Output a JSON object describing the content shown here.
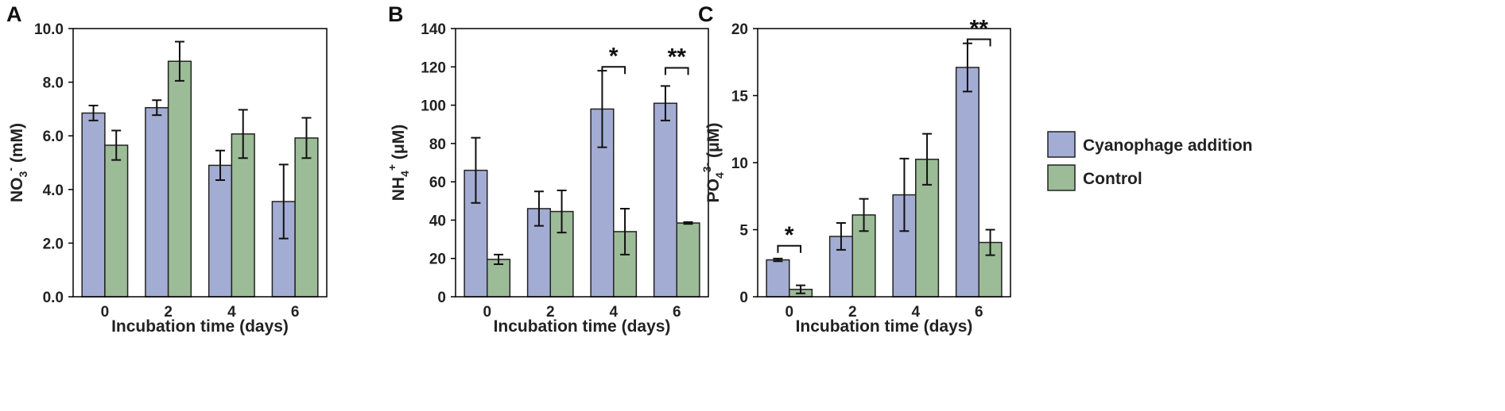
{
  "chart_data": [
    {
      "type": "bar",
      "panel": "A",
      "categories": [
        "0",
        "2",
        "4",
        "6"
      ],
      "series": [
        {
          "name": "Cyanophage addition",
          "values": [
            6.85,
            7.05,
            4.9,
            3.55
          ],
          "errors": [
            0.28,
            0.28,
            0.55,
            1.38
          ]
        },
        {
          "name": "Control",
          "values": [
            5.65,
            8.78,
            6.07,
            5.92
          ],
          "errors": [
            0.55,
            0.73,
            0.9,
            0.75
          ]
        }
      ],
      "ylim": [
        0,
        10
      ],
      "yticks": [
        0,
        2,
        4,
        6,
        8,
        10
      ],
      "ytick_labels": [
        "0.0",
        "2.0",
        "4.0",
        "6.0",
        "8.0",
        "10.0"
      ],
      "ylabel_main": "NO",
      "ylabel_sub": "3",
      "ylabel_sup": "-",
      "ylabel_tail": " (mM)",
      "xlabel": "Incubation time (days)",
      "significance": []
    },
    {
      "type": "bar",
      "panel": "B",
      "categories": [
        "0",
        "2",
        "4",
        "6"
      ],
      "series": [
        {
          "name": "Cyanophage addition",
          "values": [
            66,
            46,
            98,
            101
          ],
          "errors": [
            17,
            9,
            20,
            9
          ]
        },
        {
          "name": "Control",
          "values": [
            19.5,
            44.5,
            34,
            38.5
          ],
          "errors": [
            2.5,
            11,
            12,
            0.5
          ]
        }
      ],
      "ylim": [
        0,
        140
      ],
      "yticks": [
        0,
        20,
        40,
        60,
        80,
        100,
        120,
        140
      ],
      "ytick_labels": [
        "0",
        "20",
        "40",
        "60",
        "80",
        "100",
        "120",
        "140"
      ],
      "ylabel_main": "NH",
      "ylabel_sub": "4",
      "ylabel_sup": "+",
      "ylabel_tail": " (μM)",
      "xlabel": "Incubation time (days)",
      "significance": [
        {
          "category": 2,
          "label": "*",
          "y": 120
        },
        {
          "category": 3,
          "label": "**",
          "y": 119.5
        }
      ]
    },
    {
      "type": "bar",
      "panel": "C",
      "categories": [
        "0",
        "2",
        "4",
        "6"
      ],
      "series": [
        {
          "name": "Cyanophage addition",
          "values": [
            2.75,
            4.5,
            7.6,
            17.1
          ],
          "errors": [
            0.1,
            1.0,
            2.7,
            1.8
          ]
        },
        {
          "name": "Control",
          "values": [
            0.55,
            6.1,
            10.25,
            4.05
          ],
          "errors": [
            0.3,
            1.2,
            1.9,
            0.95
          ]
        }
      ],
      "ylim": [
        0,
        20
      ],
      "yticks": [
        0,
        5,
        10,
        15,
        20
      ],
      "ytick_labels": [
        "0",
        "5",
        "10",
        "15",
        "20"
      ],
      "ylabel_main": "PO",
      "ylabel_sub": "4",
      "ylabel_sup": "3-",
      "ylabel_tail": " (μM)",
      "xlabel": "Incubation time (days)",
      "significance": [
        {
          "category": 0,
          "label": "*",
          "y": 3.8
        },
        {
          "category": 3,
          "label": "**",
          "y": 19.2
        }
      ]
    }
  ],
  "legend": {
    "position": "right",
    "items": [
      {
        "label": "Cyanophage addition",
        "color": "#a3acd3"
      },
      {
        "label": "Control",
        "color": "#9cbb97"
      }
    ]
  },
  "colors": {
    "cyanophage": "#a3acd3",
    "control": "#9cbb97"
  }
}
